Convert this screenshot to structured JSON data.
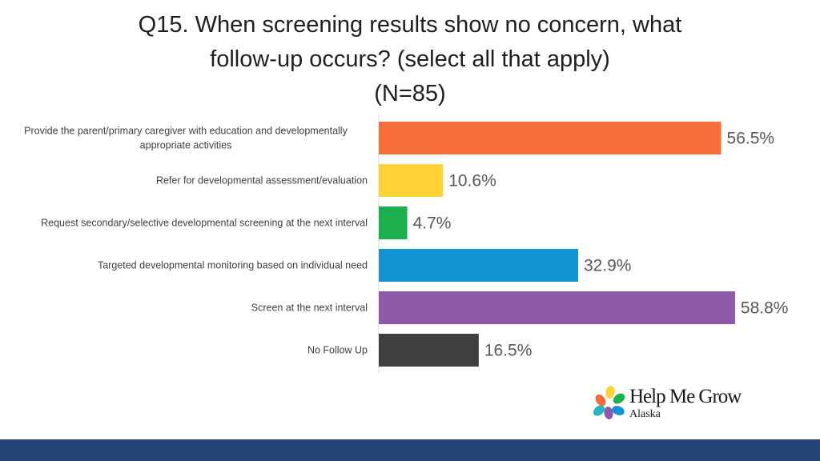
{
  "title": {
    "line1": "Q15. When screening results show no concern, what",
    "line2": "follow-up occurs? (select all that apply)",
    "line3": "(N=85)"
  },
  "chart_data": {
    "type": "bar",
    "orientation": "horizontal",
    "categories": [
      [
        "Provide the parent/primary caregiver with education and developmentally",
        "appropriate activities"
      ],
      [
        "Refer for developmental assessment/evaluation"
      ],
      [
        "Request secondary/selective developmental screening at the next interval"
      ],
      [
        "Targeted developmental monitoring based on individual need"
      ],
      [
        "Screen at the next interval"
      ],
      [
        "No Follow Up"
      ]
    ],
    "values": [
      56.5,
      10.6,
      4.7,
      32.9,
      58.8,
      16.5
    ],
    "value_labels": [
      "56.5%",
      "10.6%",
      "4.7%",
      "32.9%",
      "58.8%",
      "16.5%"
    ],
    "colors": [
      "#f56d38",
      "#fdd335",
      "#1db04e",
      "#1493d1",
      "#8d59a8",
      "#3f3f3f"
    ],
    "xlim": [
      0,
      60
    ],
    "grid": false,
    "legend": "none"
  },
  "logo": {
    "name": "Help Me Grow",
    "region": "Alaska",
    "petal_colors": [
      "#f56d38",
      "#fdd335",
      "#1db04e",
      "#1493d1",
      "#8d59a8",
      "#2bb3c0"
    ]
  },
  "footer": {
    "color": "#264478"
  }
}
